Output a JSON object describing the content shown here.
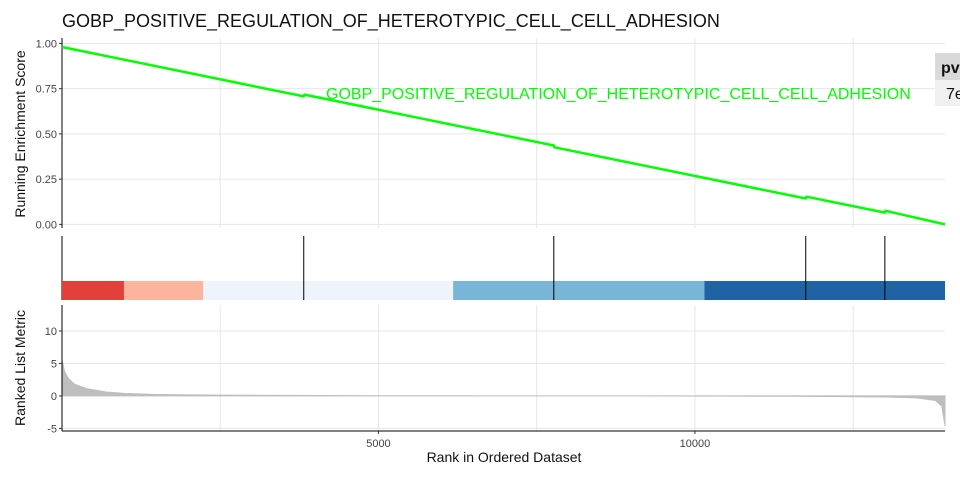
{
  "chart_data": {
    "type": "line",
    "title": "GOBP_POSITIVE_REGULATION_OF_HETEROTYPIC_CELL_CELL_ADHESION",
    "xlabel": "Rank in Ordered Dataset",
    "xlim": [
      1,
      13950
    ],
    "x_ticks": [
      5000,
      10000
    ],
    "x_tick_labels": [
      "5000",
      "10000"
    ],
    "panels": {
      "running_score": {
        "ylabel": "Running Enrichment Score",
        "ylim": [
          -0.02,
          1.03
        ],
        "y_ticks": [
          0.0,
          0.25,
          0.5,
          0.75,
          1.0
        ],
        "y_tick_labels": [
          "0.00",
          "0.25",
          "0.50",
          "0.75",
          "1.00"
        ],
        "series": [
          {
            "name": "GOBP_POSITIVE_REGULATION_OF_HETEROTYPIC_CELL_CELL_ADHESION",
            "color": "#00ff00",
            "x": [
              1,
              3820,
              3830,
              7770,
              7780,
              11750,
              11760,
              13000,
              13010,
              13950
            ],
            "y": [
              0.98,
              0.707,
              0.717,
              0.436,
              0.426,
              0.143,
              0.153,
              0.065,
              0.075,
              0.0
            ]
          }
        ]
      },
      "hits": {
        "positions": [
          3820,
          7770,
          11750,
          13000
        ],
        "line_color": "#000000"
      },
      "rank_bands": {
        "breaks": [
          1,
          980,
          2230,
          6180,
          10150,
          13950
        ],
        "colors": [
          "#e2403a",
          "#fcb59c",
          "#eff4fc",
          "#78b5d8",
          "#1f63a5"
        ]
      },
      "ranked_metric": {
        "ylabel": "Ranked List Metric",
        "ylim": [
          -5.4,
          14
        ],
        "y_ticks": [
          -5,
          0,
          5,
          10
        ],
        "y_tick_labels": [
          "-5",
          "0",
          "5",
          "10"
        ],
        "fill_color": "#bebebe",
        "x": [
          1,
          40,
          100,
          200,
          400,
          700,
          1000,
          1500,
          2500,
          4000,
          5000,
          6000,
          6800,
          8000,
          8900,
          9650,
          10600,
          11500,
          12300,
          13000,
          13500,
          13800,
          13900,
          13950
        ],
        "y": [
          5.6,
          3.8,
          2.7,
          1.8,
          1.1,
          0.6,
          0.38,
          0.22,
          0.12,
          0.07,
          0.04,
          0.02,
          0.005,
          0.0,
          0.0,
          -0.01,
          -0.03,
          -0.06,
          -0.1,
          -0.16,
          -0.3,
          -0.7,
          -1.6,
          -4.6
        ]
      }
    },
    "table": {
      "header": "pv",
      "cell": "7e"
    }
  }
}
